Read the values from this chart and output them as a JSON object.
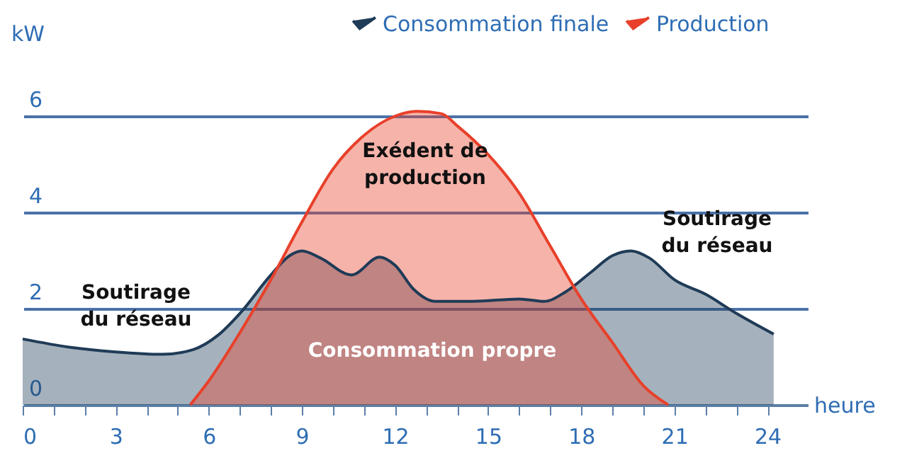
{
  "chart_data": {
    "type": "area",
    "ylabel": "kW",
    "xlabel": "heure",
    "xlim": [
      0,
      25.3
    ],
    "ylim": [
      0,
      6.5
    ],
    "xticks": [
      0,
      {
        "value": 1,
        "label": null
      },
      {
        "value": 2,
        "label": null
      },
      3,
      {
        "value": 4,
        "label": null
      },
      {
        "value": 5,
        "label": null
      },
      6,
      {
        "value": 7,
        "label": null
      },
      {
        "value": 8,
        "label": null
      },
      9,
      {
        "value": 10,
        "label": null
      },
      {
        "value": 11,
        "label": null
      },
      12,
      {
        "value": 13,
        "label": null
      },
      {
        "value": 14,
        "label": null
      },
      15,
      {
        "value": 16,
        "label": null
      },
      {
        "value": 17,
        "label": null
      },
      18,
      {
        "value": 19,
        "label": null
      },
      {
        "value": 20,
        "label": null
      },
      21,
      {
        "value": 22,
        "label": null
      },
      {
        "value": 23,
        "label": null
      },
      24
    ],
    "yticks": [
      0,
      2,
      4,
      6
    ],
    "grid": "y",
    "legend": "top right",
    "series": [
      {
        "name": "Consommation finale",
        "color": "#1f3b57",
        "x": [
          0,
          1.5,
          3,
          4.5,
          5.5,
          6.3,
          7,
          8,
          8.6,
          9,
          9.6,
          10.6,
          11.5,
          12,
          12.6,
          13.3,
          14.5,
          16,
          16.8,
          17.5,
          18.3,
          19,
          19.6,
          20.2,
          21,
          22,
          23,
          24.2
        ],
        "values": [
          1.37,
          1.2,
          1.1,
          1.05,
          1.15,
          1.45,
          1.9,
          2.7,
          3.1,
          3.2,
          3.05,
          2.7,
          3.07,
          2.9,
          2.4,
          2.15,
          2.15,
          2.2,
          2.15,
          2.35,
          2.75,
          3.1,
          3.2,
          3.05,
          2.6,
          2.3,
          1.9,
          1.47
        ]
      },
      {
        "name": "Production",
        "color": "#e8402a",
        "x": [
          5.4,
          6,
          7,
          8,
          9,
          10,
          11,
          12,
          12.7,
          13.5,
          14,
          15,
          16,
          17,
          18,
          19,
          20,
          20.8
        ],
        "values": [
          0,
          0.5,
          1.5,
          2.6,
          3.8,
          4.9,
          5.6,
          6.0,
          6.1,
          6.05,
          5.8,
          5.2,
          4.4,
          3.3,
          2.2,
          1.3,
          0.4,
          0
        ]
      }
    ],
    "annotations": [
      "Exédent de\nproduction",
      "Consommation propre",
      "Soutirage\ndu réseau",
      "Soutirage\ndu réseau"
    ]
  }
}
